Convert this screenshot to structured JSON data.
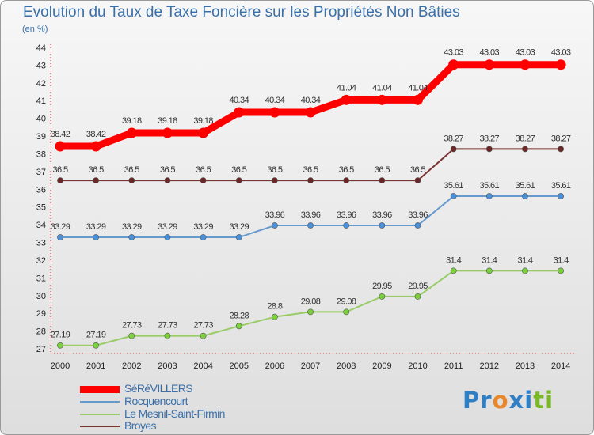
{
  "title": "Evolution du Taux de Taxe Foncière sur les Propriétés Non Bâties",
  "subtitle": "(en %)",
  "logo": {
    "text": "Proxiti",
    "letters": [
      "P",
      "r",
      "o",
      "x",
      "i",
      "t",
      "i"
    ],
    "colors": [
      "#2f7fc6",
      "#2f7fc6",
      "#e8862a",
      "#2f7fc6",
      "#2f7fc6",
      "#7ab829",
      "#7ab829"
    ]
  },
  "chart_data": {
    "type": "line",
    "title": "Evolution du Taux de Taxe Foncière sur les Propriétés Non Bâties",
    "ylabel": "(en %)",
    "xlabel": "",
    "ylim": [
      27,
      44
    ],
    "yticks": [
      "27",
      "28",
      "29",
      "30",
      "31",
      "32",
      "33",
      "34",
      "35",
      "36",
      "37",
      "38",
      "39",
      "40",
      "41",
      "42",
      "43",
      "44"
    ],
    "categories": [
      "2000",
      "2001",
      "2002",
      "2003",
      "2004",
      "2005",
      "2006",
      "2007",
      "2008",
      "2009",
      "2010",
      "2011",
      "2012",
      "2013",
      "2014"
    ],
    "series": [
      {
        "name": "SéRéVILLERS",
        "color": "#ff0000",
        "marker": "#ff0000",
        "values": [
          38.42,
          38.42,
          39.18,
          39.18,
          39.18,
          40.34,
          40.34,
          40.34,
          41.04,
          41.04,
          41.04,
          43.03,
          43.03,
          43.03,
          43.03
        ],
        "labels": [
          "38.42",
          "38.42",
          "39.18",
          "39.18",
          "39.18",
          "40.34",
          "40.34",
          "40.34",
          "41.04",
          "41.04",
          "41.04",
          "43.03",
          "43.03",
          "43.03",
          "43.03"
        ]
      },
      {
        "name": "Rocquencourt",
        "color": "#6699cc",
        "marker": "#4a90d8",
        "values": [
          33.29,
          33.29,
          33.29,
          33.29,
          33.29,
          33.29,
          33.96,
          33.96,
          33.96,
          33.96,
          33.96,
          35.61,
          35.61,
          35.61,
          35.61
        ],
        "labels": [
          "33.29",
          "33.29",
          "33.29",
          "33.29",
          "33.29",
          "33.29",
          "33.96",
          "33.96",
          "33.96",
          "33.96",
          "33.96",
          "35.61",
          "35.61",
          "35.61",
          "35.61"
        ]
      },
      {
        "name": "Le Mesnil-Saint-Firmin",
        "color": "#99cc66",
        "marker": "#7bd13b",
        "values": [
          27.19,
          27.19,
          27.73,
          27.73,
          27.73,
          28.28,
          28.8,
          29.08,
          29.08,
          29.95,
          29.95,
          31.4,
          31.4,
          31.4,
          31.4
        ],
        "labels": [
          "27.19",
          "27.19",
          "27.73",
          "27.73",
          "27.73",
          "28.28",
          "28.8",
          "29.08",
          "29.08",
          "29.95",
          "29.95",
          "31.4",
          "31.4",
          "31.4",
          "31.4"
        ]
      },
      {
        "name": "Broyes",
        "color": "#7a3333",
        "marker": "#6b2626",
        "values": [
          36.5,
          36.5,
          36.5,
          36.5,
          36.5,
          36.5,
          36.5,
          36.5,
          36.5,
          36.5,
          36.5,
          38.27,
          38.27,
          38.27,
          38.27
        ],
        "labels": [
          "36.5",
          "36.5",
          "36.5",
          "36.5",
          "36.5",
          "36.5",
          "36.5",
          "36.5",
          "36.5",
          "36.5",
          "36.5",
          "38.27",
          "38.27",
          "38.27",
          "38.27"
        ]
      }
    ],
    "legend": [
      "SéRéVILLERS",
      "Rocquencourt",
      "Le Mesnil-Saint-Firmin",
      "Broyes"
    ],
    "legend_position": "bottom-left",
    "grid": false
  }
}
